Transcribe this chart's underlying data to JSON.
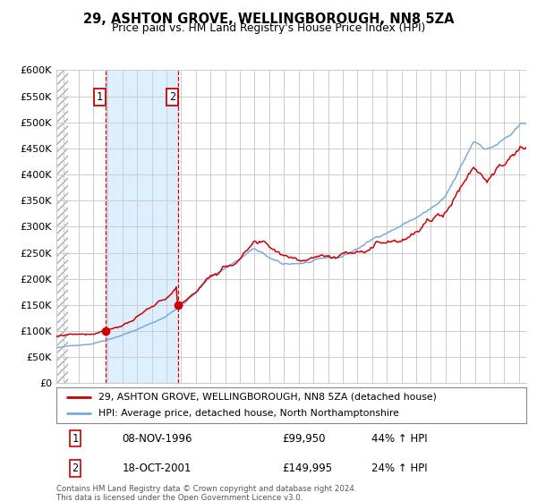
{
  "title": "29, ASHTON GROVE, WELLINGBOROUGH, NN8 5ZA",
  "subtitle": "Price paid vs. HM Land Registry's House Price Index (HPI)",
  "legend_line1": "29, ASHTON GROVE, WELLINGBOROUGH, NN8 5ZA (detached house)",
  "legend_line2": "HPI: Average price, detached house, North Northamptonshire",
  "sale1_date": "08-NOV-1996",
  "sale1_price": "£99,950",
  "sale1_hpi": "44% ↑ HPI",
  "sale2_date": "18-OCT-2001",
  "sale2_price": "£149,995",
  "sale2_hpi": "24% ↑ HPI",
  "footer": "Contains HM Land Registry data © Crown copyright and database right 2024.\nThis data is licensed under the Open Government Licence v3.0.",
  "sale1_x": 1996.85,
  "sale1_y": 99950,
  "sale2_x": 2001.79,
  "sale2_y": 149995,
  "red_color": "#cc0000",
  "blue_color": "#7aaadd",
  "shade_color": "#ddeeff",
  "grid_color": "#cccccc",
  "bg_color": "#ffffff",
  "ylim_min": 0,
  "ylim_max": 600000,
  "xlim_min": 1993.5,
  "xlim_max": 2025.5,
  "yticks": [
    0,
    50000,
    100000,
    150000,
    200000,
    250000,
    300000,
    350000,
    400000,
    450000,
    500000,
    550000,
    600000
  ],
  "ytick_labels": [
    "£0",
    "£50K",
    "£100K",
    "£150K",
    "£200K",
    "£250K",
    "£300K",
    "£350K",
    "£400K",
    "£450K",
    "£500K",
    "£550K",
    "£600K"
  ],
  "xticks": [
    1994,
    1995,
    1996,
    1997,
    1998,
    1999,
    2000,
    2001,
    2002,
    2003,
    2004,
    2005,
    2006,
    2007,
    2008,
    2009,
    2010,
    2011,
    2012,
    2013,
    2014,
    2015,
    2016,
    2017,
    2018,
    2019,
    2020,
    2021,
    2022,
    2023,
    2024,
    2025
  ]
}
